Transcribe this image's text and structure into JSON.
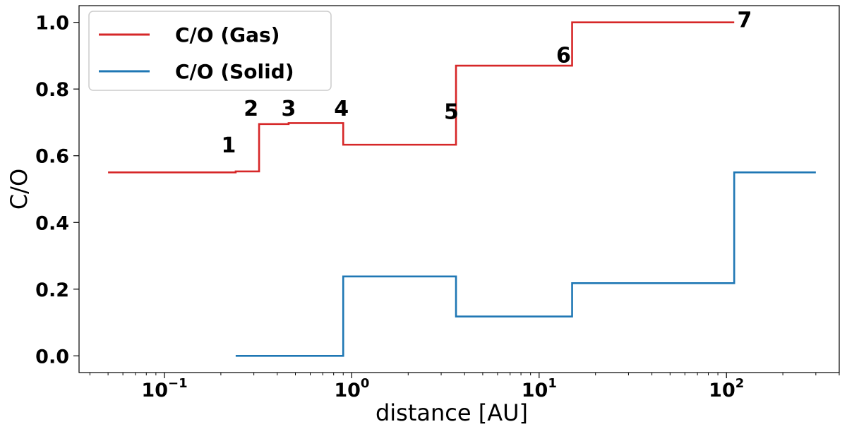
{
  "chart_data": {
    "type": "line",
    "title": "",
    "xlabel": "distance [AU]",
    "ylabel": "C/O",
    "xscale": "log",
    "xlim": [
      0.035,
      400
    ],
    "ylim": [
      -0.05,
      1.05
    ],
    "grid": false,
    "legend_position": "top-left",
    "yticks": [
      "0.0",
      "0.2",
      "0.4",
      "0.6",
      "0.8",
      "1.0"
    ],
    "xticks": [
      {
        "value": 0.1,
        "base": "10",
        "exp": "−1"
      },
      {
        "value": 1,
        "base": "10",
        "exp": "0"
      },
      {
        "value": 10,
        "base": "10",
        "exp": "1"
      },
      {
        "value": 100,
        "base": "10",
        "exp": "2"
      }
    ],
    "series": [
      {
        "name": "C/O (Gas)",
        "color": "#d62728",
        "step": "post",
        "x": [
          0.05,
          0.24,
          0.32,
          0.46,
          0.9,
          3.6,
          15,
          110
        ],
        "y": [
          0.55,
          0.553,
          0.695,
          0.698,
          0.633,
          0.87,
          1.0,
          1.0
        ]
      },
      {
        "name": "C/O (Solid)",
        "color": "#1f77b4",
        "step": "post",
        "x": [
          0.24,
          0.9,
          3.6,
          15,
          110,
          300
        ],
        "y": [
          0.0,
          0.238,
          0.118,
          0.218,
          0.55,
          0.55
        ]
      }
    ],
    "annotations": [
      {
        "text": "1",
        "x": 0.22,
        "y": 0.61
      },
      {
        "text": "2",
        "x": 0.29,
        "y": 0.72
      },
      {
        "text": "3",
        "x": 0.46,
        "y": 0.72
      },
      {
        "text": "4",
        "x": 0.88,
        "y": 0.72
      },
      {
        "text": "5",
        "x": 3.4,
        "y": 0.71
      },
      {
        "text": "6",
        "x": 13.5,
        "y": 0.88
      },
      {
        "text": "7",
        "x": 125,
        "y": 0.985
      }
    ]
  }
}
